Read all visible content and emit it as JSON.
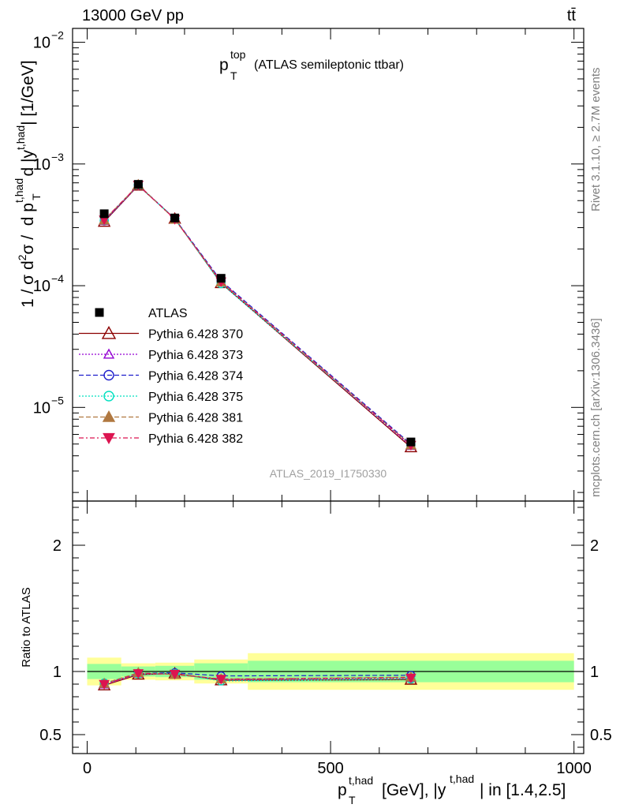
{
  "header": {
    "left": "13000 GeV pp",
    "right": "tt̄"
  },
  "side_labels": {
    "rivet": "Rivet 3.1.10, ≥ 2.7M events",
    "mcplots": "mcplots.cern.ch [arXiv:1306.3436]"
  },
  "colors": {
    "data": "#000000",
    "band_stat": "#99ff99",
    "band_total": "#ffff99",
    "p370": "#8b0000",
    "p373": "#9400d3",
    "p374": "#1e1ecc",
    "p375": "#00e0c0",
    "p381": "#b07840",
    "p382": "#dc1450"
  },
  "chart_data": [
    {
      "type": "line",
      "title_main": "p",
      "title_sup": "top",
      "title_sub": "T",
      "title_rest": "(ATLAS semileptonic ttbar)",
      "ylabel": "1 / σ d²σ / d p_T^{t,had} d |y^{t,had}| [1/GeV]",
      "yscale": "log",
      "ylim": [
        1.7e-06,
        0.013
      ],
      "xlim": [
        -30,
        1020
      ],
      "yticks": [
        {
          "value": 0.01,
          "base": "10",
          "exp": "−2"
        },
        {
          "value": 0.001,
          "base": "10",
          "exp": "−3"
        },
        {
          "value": 0.0001,
          "base": "10",
          "exp": "−4"
        },
        {
          "value": 1e-05,
          "base": "10",
          "exp": "−5"
        }
      ],
      "watermark": "ATLAS_2019_I1750330",
      "legend_position": "left",
      "x": [
        35,
        105,
        180,
        275,
        665
      ],
      "data": {
        "name": "ATLAS",
        "values": [
          0.00039,
          0.00068,
          0.00036,
          0.000115,
          5.2e-06
        ]
      },
      "series": [
        {
          "name": "Pythia 6.428 370",
          "key": "p370",
          "values": [
            0.000335,
            0.000665,
            0.000355,
            0.000105,
            4.7e-06
          ]
        },
        {
          "name": "Pythia 6.428 373",
          "key": "p373",
          "values": [
            0.000338,
            0.000668,
            0.000353,
            0.000106,
            4.8e-06
          ]
        },
        {
          "name": "Pythia 6.428 374",
          "key": "p374",
          "values": [
            0.000342,
            0.000672,
            0.000356,
            0.00011,
            5e-06
          ]
        },
        {
          "name": "Pythia 6.428 375",
          "key": "p375",
          "values": [
            0.000345,
            0.00067,
            0.000354,
            0.000104,
            4.9e-06
          ]
        },
        {
          "name": "Pythia 6.428 381",
          "key": "p381",
          "values": [
            0.000345,
            0.000675,
            0.00035,
            0.000107,
            4.9e-06
          ]
        },
        {
          "name": "Pythia 6.428 382",
          "key": "p382",
          "values": [
            0.000348,
            0.000672,
            0.000352,
            0.000108,
            4.9e-06
          ]
        }
      ]
    },
    {
      "type": "line",
      "ylabel": "Ratio to ATLAS",
      "xlabel": "p_T^{t,had} [GeV], |y^{t,had}| in [1.4,2.5]",
      "xlabel_rest": "[GeV], |y",
      "xlabel_tail": "| in [1.4,2.5]",
      "xlim": [
        -30,
        1020
      ],
      "ylim": [
        0.35,
        2.35
      ],
      "xticks": [
        0,
        500,
        1000
      ],
      "yticks": [
        0.5,
        1,
        2
      ],
      "reference": 1,
      "bins": [
        {
          "lo": 0,
          "hi": 70,
          "stat": [
            0.94,
            1.06
          ],
          "total": [
            0.89,
            1.11
          ]
        },
        {
          "lo": 70,
          "hi": 140,
          "stat": [
            0.96,
            1.04
          ],
          "total": [
            0.935,
            1.065
          ]
        },
        {
          "lo": 140,
          "hi": 220,
          "stat": [
            0.955,
            1.045
          ],
          "total": [
            0.93,
            1.07
          ]
        },
        {
          "lo": 220,
          "hi": 330,
          "stat": [
            0.935,
            1.065
          ],
          "total": [
            0.905,
            1.095
          ]
        },
        {
          "lo": 330,
          "hi": 1000,
          "stat": [
            0.915,
            1.085
          ],
          "total": [
            0.855,
            1.145
          ]
        }
      ],
      "x": [
        35,
        105,
        180,
        275,
        665
      ],
      "series": [
        {
          "key": "p370",
          "values": [
            0.89,
            0.975,
            0.985,
            0.93,
            0.935
          ]
        },
        {
          "key": "p373",
          "values": [
            0.895,
            0.98,
            0.98,
            0.935,
            0.945
          ]
        },
        {
          "key": "p374",
          "values": [
            0.905,
            0.985,
            0.99,
            0.965,
            0.97
          ]
        },
        {
          "key": "p375",
          "values": [
            0.91,
            0.98,
            0.985,
            0.925,
            0.94
          ]
        },
        {
          "key": "p381",
          "values": [
            0.905,
            0.99,
            0.975,
            0.94,
            0.955
          ]
        },
        {
          "key": "p382",
          "values": [
            0.9,
            0.985,
            0.98,
            0.94,
            0.95
          ]
        }
      ]
    }
  ]
}
